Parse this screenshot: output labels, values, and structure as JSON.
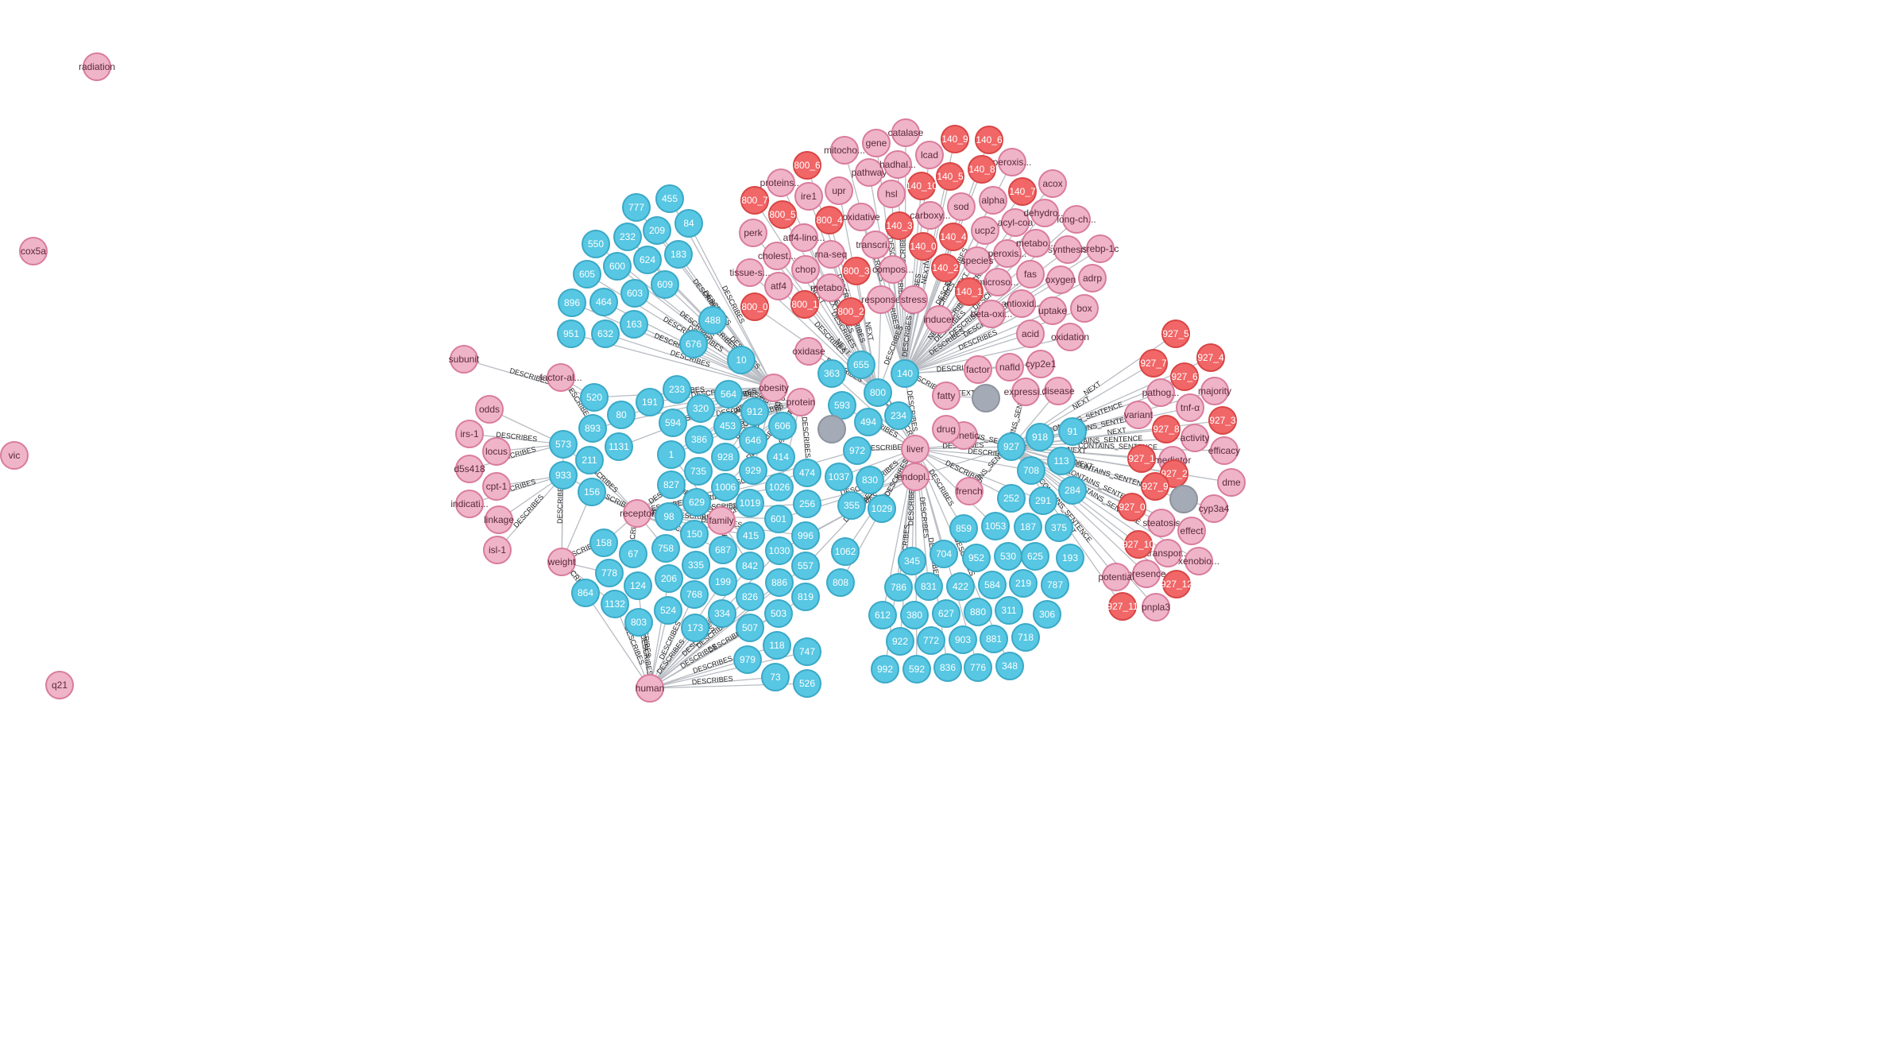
{
  "graph": {
    "colors": {
      "entity": "#efb4c8",
      "entity_stroke": "#d97b9c",
      "entity_text": "#5a2a3a",
      "document": "#57c7e3",
      "document_stroke": "#3aa9c6",
      "document_text": "#ffffff",
      "chunk": "#f16667",
      "chunk_stroke": "#d84545",
      "chunk_text": "#ffffff",
      "unknown": "#a5abb6",
      "unknown_stroke": "#8d939e",
      "edge": "#b8bcc2"
    },
    "edge_labels": [
      "DESCRIBES",
      "NEXT",
      "CONTAINS_SENTENCE",
      "TEXT"
    ],
    "entities": [
      "radiation",
      "cox5a",
      "vic",
      "q21",
      "subunit",
      "odds",
      "irs-1",
      "locus",
      "d5s418",
      "cpt-1",
      "indicati...",
      "linkage",
      "isl-1",
      "factor-al...",
      "weight",
      "receptor",
      "family",
      "human",
      "obesity",
      "protein",
      "liver",
      "endopl...",
      "french",
      "genetic",
      "drug",
      "fatty",
      "factor",
      "nafld",
      "cyp2e1",
      "expressi...",
      "disease",
      "oxidase",
      "proteins...",
      "ire1",
      "perk",
      "atf4-lino...",
      "cholest...",
      "chop",
      "tissue-s...",
      "atf4",
      "metabo...",
      "response",
      "stress",
      "inducer",
      "rna-seq",
      "upr",
      "oxidative",
      "transcri...",
      "compos...",
      "mitocho...",
      "pathway",
      "gene",
      "hsl",
      "hadhal...",
      "catalase",
      "lcad",
      "carboxy...",
      "sod",
      "ucp2",
      "species",
      "microso...",
      "antioxid...",
      "beta-oxi...",
      "alpha",
      "acyl-coa",
      "peroxis...",
      "metabo...",
      "fas",
      "acid",
      "uptake",
      "oxidation",
      "acox",
      "dehydro...",
      "long-ch...",
      "synthesis",
      "srebp-1c",
      "adrp",
      "oxygen",
      "box",
      "pathog...",
      "majority",
      "tnf-α",
      "variant",
      "activity",
      "mediator",
      "efficacy",
      "dme",
      "cyp3a4",
      "steatosis",
      "effect",
      "transpor...",
      "xenobio...",
      "presence",
      "potential",
      "pnpla3"
    ],
    "chunks": [
      "800_0",
      "800_1",
      "800_2",
      "800_3",
      "800_4",
      "800_5",
      "800_6",
      "800_7",
      "140_0",
      "140_1",
      "140_2",
      "140_3",
      "140_4",
      "140_5",
      "140_6",
      "140_7",
      "140_8",
      "140_9",
      "140_10",
      "927_0",
      "927_1",
      "927_2",
      "927_3",
      "927_4",
      "927_5",
      "927_6",
      "927_7",
      "927_8",
      "927_9",
      "927_10",
      "927_11",
      "927_12"
    ],
    "documents": [
      "455",
      "777",
      "84",
      "209",
      "232",
      "183",
      "550",
      "624",
      "600",
      "609",
      "605",
      "603",
      "896",
      "464",
      "488",
      "951",
      "163",
      "632",
      "676",
      "10",
      "363",
      "655",
      "140",
      "800",
      "520",
      "233",
      "564",
      "191",
      "80",
      "320",
      "893",
      "912",
      "593",
      "494",
      "234",
      "1131",
      "594",
      "453",
      "646",
      "606",
      "573",
      "211",
      "386",
      "1",
      "928",
      "929",
      "414",
      "474",
      "972",
      "918",
      "91",
      "927",
      "933",
      "156",
      "827",
      "735",
      "1006",
      "1026",
      "1037",
      "830",
      "113",
      "708",
      "629",
      "98",
      "150",
      "1019",
      "256",
      "355",
      "1029",
      "252",
      "187",
      "291",
      "284",
      "375",
      "158",
      "67",
      "687",
      "758",
      "601",
      "415",
      "996",
      "859",
      "1053",
      "193",
      "778",
      "124",
      "335",
      "206",
      "1030",
      "842",
      "557",
      "1062",
      "704",
      "952",
      "530",
      "625",
      "199",
      "768",
      "886",
      "886",
      "808",
      "345",
      "831",
      "422",
      "584",
      "219",
      "787",
      "864",
      "1132",
      "524",
      "173",
      "334",
      "826",
      "503",
      "819",
      "786",
      "380",
      "627",
      "880",
      "311",
      "306",
      "612",
      "922",
      "772",
      "903",
      "881",
      "718",
      "592",
      "836",
      "776",
      "348",
      "803",
      "507",
      "118",
      "747",
      "979",
      "73",
      "526"
    ]
  }
}
